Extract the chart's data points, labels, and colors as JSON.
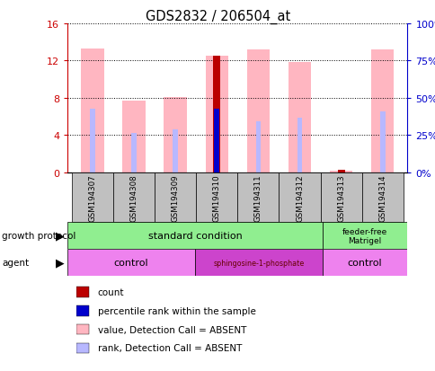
{
  "title": "GDS2832 / 206504_at",
  "samples": [
    "GSM194307",
    "GSM194308",
    "GSM194309",
    "GSM194310",
    "GSM194311",
    "GSM194312",
    "GSM194313",
    "GSM194314"
  ],
  "value_absent": [
    13.3,
    7.7,
    8.1,
    12.5,
    13.2,
    11.8,
    0.15,
    13.2
  ],
  "rank_absent": [
    6.8,
    4.2,
    4.6,
    6.8,
    5.5,
    5.8,
    0.0,
    6.5
  ],
  "count": [
    0,
    0,
    0,
    12.5,
    0,
    0,
    0.2,
    0
  ],
  "percentile_rank": [
    0,
    0,
    0,
    6.8,
    0,
    0,
    0,
    0
  ],
  "ylim_left": [
    0,
    16
  ],
  "ylim_right": [
    0,
    100
  ],
  "yticks_left": [
    0,
    4,
    8,
    12,
    16
  ],
  "yticks_right": [
    0,
    25,
    50,
    75,
    100
  ],
  "ytick_labels_left": [
    "0",
    "4",
    "8",
    "12",
    "16"
  ],
  "ytick_labels_right": [
    "0%",
    "25%",
    "50%",
    "75%",
    "100%"
  ],
  "color_value_absent": "#FFB6C1",
  "color_rank_absent": "#B8B8FF",
  "color_count": "#BB0000",
  "color_count_small": "#CC2222",
  "color_percentile": "#0000CC",
  "bar_width": 0.55,
  "rank_bar_width": 0.12,
  "count_bar_width": 0.18,
  "axis_color_left": "#CC0000",
  "axis_color_right": "#0000CC",
  "grid_color": "black",
  "bg_color": "#FFFFFF",
  "sample_box_color": "#C0C0C0",
  "gp_color_std": "#90EE90",
  "gp_color_ff": "#90EE90",
  "agent_control_color": "#EE82EE",
  "agent_sph_color": "#CC44CC",
  "legend_items": [
    {
      "color": "#BB0000",
      "label": "count"
    },
    {
      "color": "#0000CC",
      "label": "percentile rank within the sample"
    },
    {
      "color": "#FFB6C1",
      "label": "value, Detection Call = ABSENT"
    },
    {
      "color": "#B8B8FF",
      "label": "rank, Detection Call = ABSENT"
    }
  ]
}
